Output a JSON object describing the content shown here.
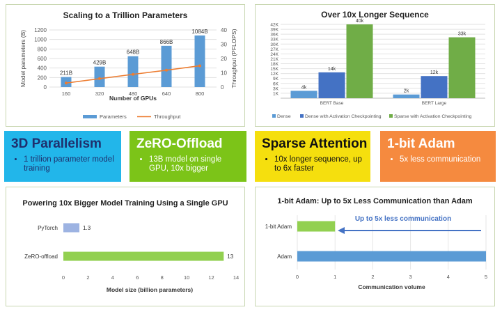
{
  "features": [
    {
      "title": "3D Parallelism",
      "bullet": "1 trillion parameter model training",
      "bg": "#22b6ea",
      "fg": "#1f2f6d"
    },
    {
      "title": "ZeRO-Offload",
      "bullet": "13B model on single GPU, 10x bigger",
      "bg": "#7cc418",
      "fg": "#ffffff"
    },
    {
      "title": "Sparse Attention",
      "bullet": "10x longer sequence, up to 6x faster",
      "bg": "#f5df0e",
      "fg": "#111111"
    },
    {
      "title": "1-bit Adam",
      "bullet": "5x less communication",
      "bg": "#f58a3f",
      "fg": "#ffffff"
    }
  ],
  "chart_data": [
    {
      "type": "bar+line",
      "title": "Scaling to a Trillion Parameters",
      "categories": [
        "160",
        "320",
        "480",
        "640",
        "800"
      ],
      "xlabel": "Number of GPUs",
      "ylabel": "Model parameters (B)",
      "y2label": "Throughput  (PFLOPS)",
      "ylim": [
        0,
        1200
      ],
      "yticks": [
        0,
        200,
        400,
        600,
        800,
        1000,
        1200
      ],
      "y2lim": [
        0,
        40
      ],
      "y2ticks": [
        0,
        10,
        20,
        30,
        40
      ],
      "series": [
        {
          "name": "Parameters",
          "values": [
            211,
            429,
            648,
            866,
            1084
          ],
          "labels": [
            "211B",
            "429B",
            "648B",
            "866B",
            "1084B"
          ],
          "color": "#5b9bd5"
        },
        {
          "name": "Throughput",
          "values": [
            2.8,
            5.9,
            8.9,
            11.8,
            14.9
          ],
          "color": "#ed7d31"
        }
      ],
      "legend": "bottom",
      "grid": true
    },
    {
      "type": "bar",
      "title": "Over 10x Longer Sequence",
      "categories": [
        "BERT Base",
        "BERT Large"
      ],
      "ylim": [
        0,
        40000
      ],
      "yticks": [
        "1K",
        "3K",
        "6K",
        "9K",
        "12K",
        "15K",
        "18K",
        "21K",
        "24K",
        "27K",
        "30K",
        "33K",
        "36K",
        "39K",
        "42K"
      ],
      "series": [
        {
          "name": "Dense",
          "values": [
            4000,
            2000
          ],
          "labels": [
            "4k",
            "2k"
          ],
          "color": "#5b9bd5"
        },
        {
          "name": "Dense with Activation Checkpointing",
          "values": [
            14000,
            12000
          ],
          "labels": [
            "14k",
            "12k"
          ],
          "color": "#4472c4"
        },
        {
          "name": "Sparse with Activation Checkpointing",
          "values": [
            40000,
            33000
          ],
          "labels": [
            "40k",
            "33k"
          ],
          "color": "#70ad47"
        }
      ],
      "legend": "bottom",
      "grid": true
    },
    {
      "type": "bar",
      "orientation": "horizontal",
      "title": "Powering 10x Bigger Model Training Using a Single GPU",
      "categories": [
        "PyTorch",
        "ZeRO-offload"
      ],
      "values": [
        1.3,
        13
      ],
      "labels": [
        "1.3",
        "13"
      ],
      "colors": [
        "#9db3e2",
        "#92d050"
      ],
      "xlabel": "Model size (billion parameters)",
      "xlim": [
        0,
        14
      ],
      "xticks": [
        0,
        2,
        4,
        6,
        8,
        10,
        12,
        14
      ]
    },
    {
      "type": "bar",
      "orientation": "horizontal",
      "title": "1-bit Adam: Up to 5x Less Communication than Adam",
      "categories": [
        "1-bit Adam",
        "Adam"
      ],
      "values": [
        1,
        5
      ],
      "colors": [
        "#92d050",
        "#5b9bd5"
      ],
      "xlabel": "Communication volume",
      "xlim": [
        0,
        5
      ],
      "xticks": [
        0,
        1,
        2,
        3,
        4,
        5
      ],
      "annotation": "Up to 5x less communication"
    }
  ]
}
